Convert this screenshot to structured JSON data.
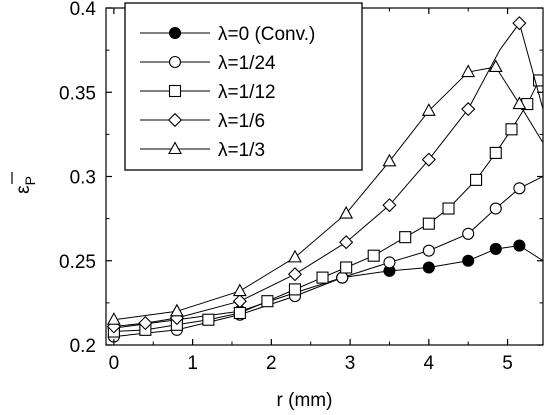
{
  "chart_data": {
    "type": "line",
    "xlabel": "r (mm)",
    "ylabel": "ε̄P",
    "ylabel_main": "ε",
    "ylabel_sub": "P",
    "xlim": [
      -0.1,
      5.45
    ],
    "ylim": [
      0.2,
      0.4
    ],
    "xticks": [
      0,
      1,
      2,
      3,
      4,
      5
    ],
    "yticks": [
      0.2,
      0.25,
      0.3,
      0.35,
      0.4
    ],
    "ytick_labels": [
      "0.2",
      "0.25",
      "0.3",
      "0.35",
      "0.4"
    ],
    "legend_position": "top-left",
    "series": [
      {
        "name": "λ=0 (Conv.)",
        "marker": "filled-circle",
        "x": [
          0,
          0.8,
          1.6,
          2.3,
          2.9,
          3.5,
          4.0,
          4.5,
          4.85,
          5.15,
          5.45
        ],
        "y": [
          0.21,
          0.215,
          0.22,
          0.231,
          0.24,
          0.244,
          0.246,
          0.25,
          0.257,
          0.259,
          0.25
        ],
        "marker_x": [
          0,
          0.8,
          1.6,
          2.3,
          2.9,
          3.5,
          4.0,
          4.5,
          4.85,
          5.15
        ]
      },
      {
        "name": "λ=1/24",
        "marker": "circle",
        "x": [
          0,
          0.8,
          1.6,
          2.3,
          2.9,
          3.5,
          4.0,
          4.5,
          4.85,
          5.15,
          5.45
        ],
        "y": [
          0.205,
          0.209,
          0.218,
          0.229,
          0.24,
          0.249,
          0.256,
          0.266,
          0.281,
          0.293,
          0.3
        ],
        "marker_x": [
          0,
          0.8,
          1.6,
          2.3,
          2.9,
          3.5,
          4.0,
          4.5,
          4.85,
          5.15
        ]
      },
      {
        "name": "λ=1/12",
        "marker": "square",
        "x": [
          0,
          0.4,
          0.8,
          1.2,
          1.6,
          1.95,
          2.3,
          2.65,
          2.95,
          3.3,
          3.7,
          4.0,
          4.25,
          4.6,
          4.85,
          5.05,
          5.25,
          5.4
        ],
        "y": [
          0.208,
          0.209,
          0.212,
          0.215,
          0.219,
          0.226,
          0.233,
          0.24,
          0.246,
          0.253,
          0.264,
          0.272,
          0.281,
          0.298,
          0.314,
          0.328,
          0.343,
          0.357
        ],
        "marker_x": [
          0,
          0.4,
          0.8,
          1.2,
          1.6,
          1.95,
          2.3,
          2.65,
          2.95,
          3.3,
          3.7,
          4.0,
          4.25,
          4.6,
          4.85,
          5.05,
          5.25,
          5.4
        ]
      },
      {
        "name": "λ=1/6",
        "marker": "diamond",
        "x": [
          0,
          0.4,
          0.8,
          1.6,
          2.3,
          2.95,
          3.5,
          4.0,
          4.5,
          4.9,
          5.15,
          5.45
        ],
        "y": [
          0.211,
          0.213,
          0.216,
          0.226,
          0.242,
          0.261,
          0.283,
          0.31,
          0.34,
          0.375,
          0.391,
          0.34
        ],
        "marker_x": [
          0,
          0.4,
          0.8,
          1.6,
          2.3,
          2.95,
          3.5,
          4.0,
          4.5,
          5.15
        ]
      },
      {
        "name": "λ=1/3",
        "marker": "triangle",
        "x": [
          0,
          0.8,
          1.6,
          2.3,
          2.95,
          3.5,
          4.0,
          4.5,
          4.85,
          5.15,
          5.45
        ],
        "y": [
          0.215,
          0.22,
          0.232,
          0.252,
          0.278,
          0.309,
          0.339,
          0.362,
          0.365,
          0.343,
          0.32
        ],
        "marker_x": [
          0,
          0.8,
          1.6,
          2.3,
          2.95,
          3.5,
          4.0,
          4.5,
          4.85,
          5.15
        ]
      }
    ]
  }
}
